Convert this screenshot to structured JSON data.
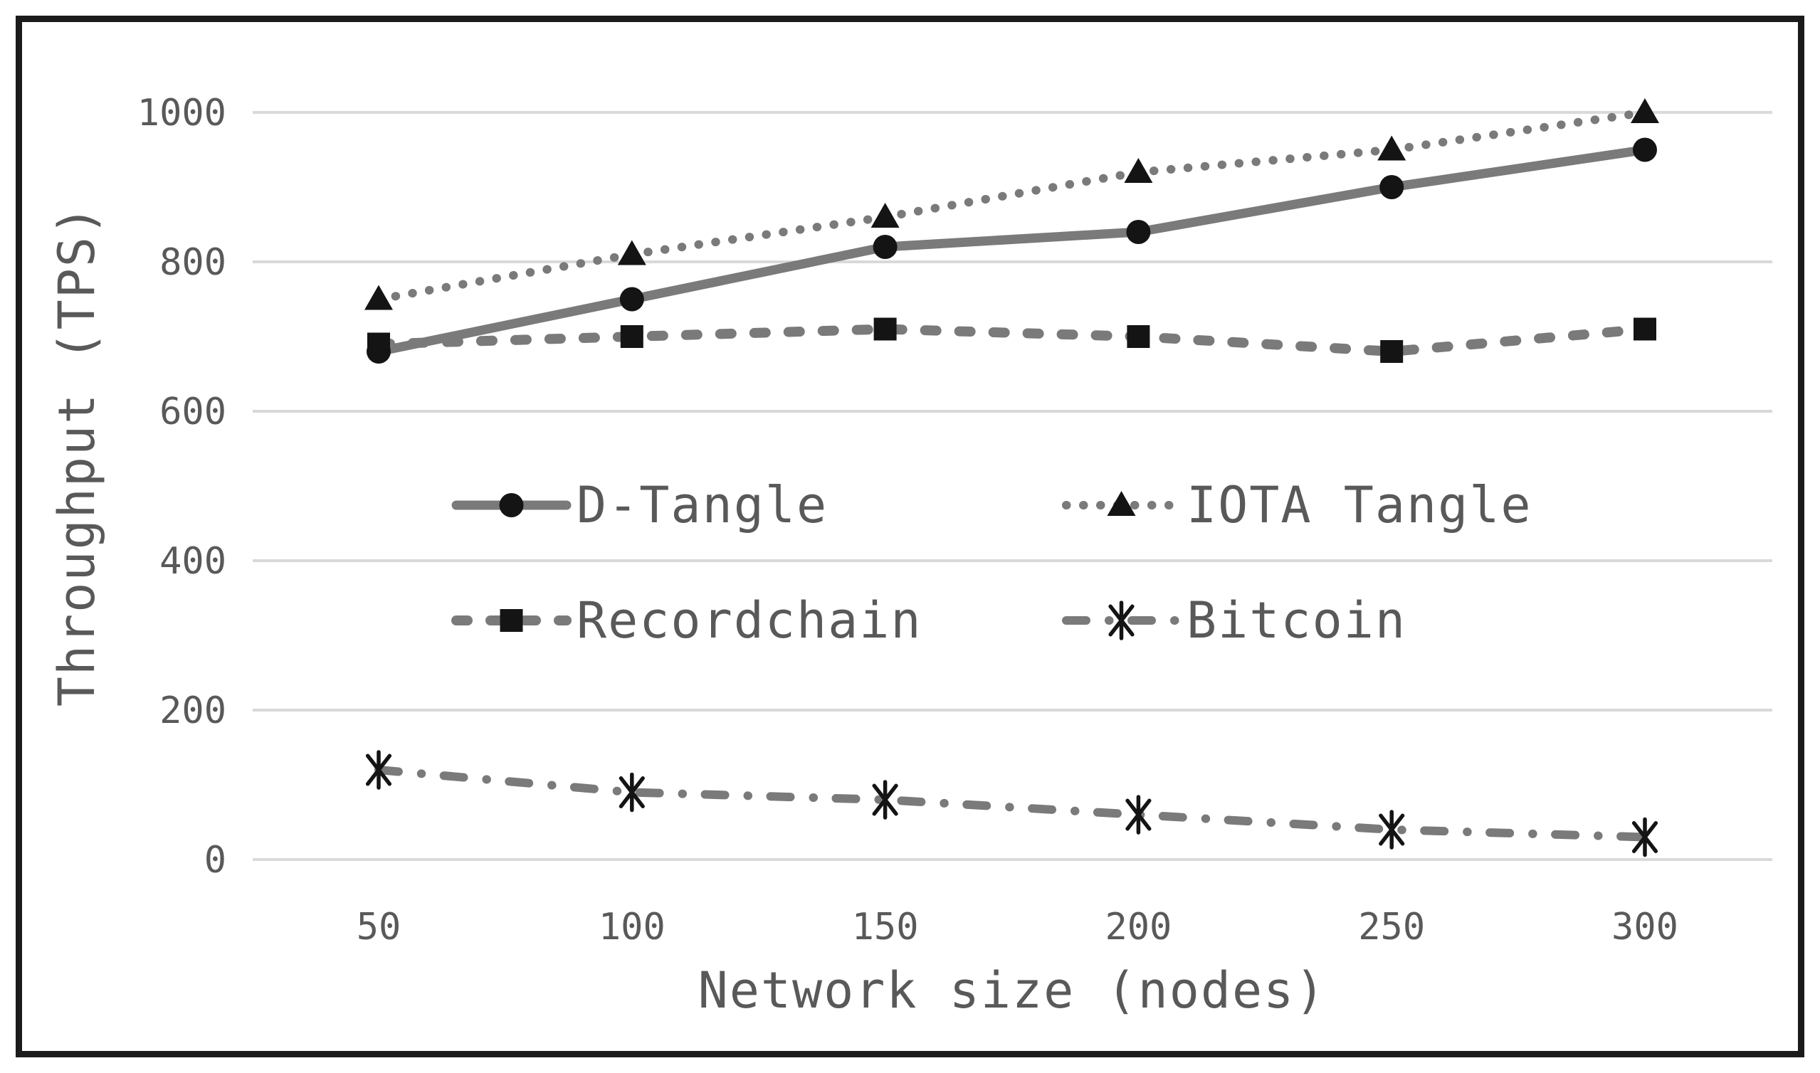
{
  "figure": {
    "background": "#ffffff",
    "border_color": "#1b1b1b"
  },
  "chart_data": {
    "type": "line",
    "title": "",
    "xlabel": "Network size (nodes)",
    "ylabel": "Throughput (TPS)",
    "x": [
      50,
      100,
      150,
      200,
      250,
      300
    ],
    "x_tick_labels": [
      "50",
      "100",
      "150",
      "200",
      "250",
      "300"
    ],
    "y_ticks": [
      0,
      200,
      400,
      600,
      800,
      1000
    ],
    "y_tick_labels": [
      "0",
      "200",
      "400",
      "600",
      "800",
      "1000"
    ],
    "ylim": [
      0,
      1050
    ],
    "xlim": [
      50,
      300
    ],
    "grid": "horizontal",
    "legend_position": "inside-center",
    "series": [
      {
        "name": "D-Tangle",
        "marker": "circle",
        "line_style": "solid",
        "values": [
          680,
          750,
          820,
          840,
          900,
          950
        ]
      },
      {
        "name": "IOTA Tangle",
        "marker": "triangle",
        "line_style": "dotted",
        "values": [
          750,
          810,
          860,
          920,
          950,
          1000
        ]
      },
      {
        "name": "Recordchain",
        "marker": "square",
        "line_style": "dashed",
        "values": [
          690,
          700,
          710,
          700,
          680,
          710
        ]
      },
      {
        "name": "Bitcoin",
        "marker": "asterisk",
        "line_style": "dash-dot",
        "values": [
          120,
          90,
          80,
          60,
          40,
          30
        ]
      }
    ],
    "colors": {
      "line": "#7a7a7a",
      "marker": "#141414",
      "grid": "#d9d9d9",
      "text": "#595959"
    }
  }
}
